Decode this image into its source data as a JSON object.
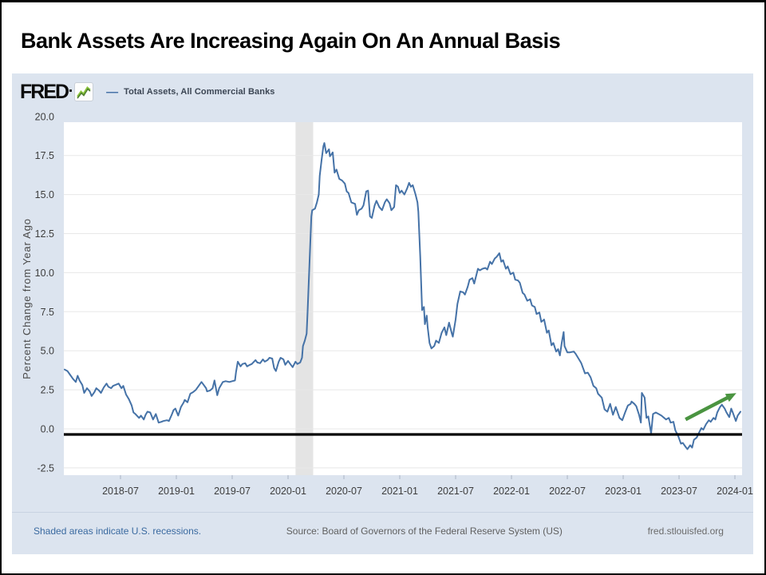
{
  "slide": {
    "title": "Bank Assets Are Increasing Again On An Annual Basis"
  },
  "fred_header": {
    "logo_text": "FRED",
    "logo_icon": "green-sparkline-icon",
    "legend_dash": "—",
    "legend_label": "Total Assets, All Commercial Banks"
  },
  "footer": {
    "left_note": "Shaded areas indicate U.S. recessions.",
    "source": "Source: Board of Governors of the Federal Reserve System (US)",
    "site": "fred.stlouisfed.org"
  },
  "chart_data": {
    "type": "line",
    "title": "Total Assets, All Commercial Banks",
    "ylabel": "Percent Change from Year Ago",
    "x_unit": "months_since_2018-01",
    "xlim": [
      -0.1,
      72.8
    ],
    "ylim": [
      -3.0,
      19.6
    ],
    "grid": "horizontal-only",
    "legend_position": "top-header",
    "y_ticks": [
      20.0,
      17.5,
      15.0,
      12.5,
      10.0,
      7.5,
      5.0,
      2.5,
      0.0,
      -2.5
    ],
    "y_tick_labels": [
      "20.0",
      "17.5",
      "15.0",
      "12.5",
      "10.0",
      "7.5",
      "5.0",
      "2.5",
      "0.0",
      "-2.5"
    ],
    "x_tick_months": [
      6,
      12,
      18,
      24,
      30,
      36,
      42,
      48,
      54,
      60,
      66,
      72
    ],
    "x_tick_labels": [
      "2018-07",
      "2019-01",
      "2019-07",
      "2020-01",
      "2020-07",
      "2021-01",
      "2021-07",
      "2022-01",
      "2022-07",
      "2023-01",
      "2023-07",
      "2024-01"
    ],
    "zero_line_value": 0.0,
    "recession_band_months": [
      24.8,
      26.7
    ],
    "recession_band_note": "U.S. recession shading, 2020-02 to 2020-04",
    "colors": {
      "line": "#4572a7",
      "gridline": "#e8e8e8",
      "recession_band": "#e4e4e4",
      "plot_background": "#ffffff",
      "widget_background": "#dce4ef",
      "tick_text": "#3d3d3d",
      "axis_title_text": "#4a4a4a",
      "zero_line": "#000000",
      "arrow": "#4a9440"
    },
    "annotation_arrow": {
      "type": "arrow",
      "from_month": 66.7,
      "from_value": 0.6,
      "to_month": 71.7,
      "to_value": 2.15,
      "color": "#4a9440"
    },
    "series": [
      {
        "name": "Total Assets, All Commercial Banks",
        "points": [
          [
            0,
            3.8
          ],
          [
            0.3,
            3.7
          ],
          [
            0.6,
            3.45
          ],
          [
            0.9,
            3.2
          ],
          [
            1.2,
            3.0
          ],
          [
            1.4,
            3.4
          ],
          [
            1.6,
            3.1
          ],
          [
            1.9,
            2.8
          ],
          [
            2.1,
            2.3
          ],
          [
            2.4,
            2.6
          ],
          [
            2.7,
            2.4
          ],
          [
            2.9,
            2.1
          ],
          [
            3.2,
            2.35
          ],
          [
            3.4,
            2.6
          ],
          [
            3.7,
            2.45
          ],
          [
            3.9,
            2.3
          ],
          [
            4.2,
            2.65
          ],
          [
            4.5,
            2.9
          ],
          [
            4.7,
            2.7
          ],
          [
            5.0,
            2.6
          ],
          [
            5.2,
            2.75
          ],
          [
            5.6,
            2.85
          ],
          [
            5.8,
            2.9
          ],
          [
            6.1,
            2.6
          ],
          [
            6.3,
            2.75
          ],
          [
            6.6,
            2.2
          ],
          [
            6.9,
            1.9
          ],
          [
            7.2,
            1.5
          ],
          [
            7.4,
            1.05
          ],
          [
            7.6,
            0.95
          ],
          [
            8.0,
            0.7
          ],
          [
            8.2,
            0.85
          ],
          [
            8.5,
            0.6
          ],
          [
            8.7,
            0.9
          ],
          [
            8.9,
            1.1
          ],
          [
            9.2,
            1.05
          ],
          [
            9.5,
            0.6
          ],
          [
            9.8,
            0.95
          ],
          [
            10.1,
            0.4
          ],
          [
            10.4,
            0.45
          ],
          [
            10.6,
            0.5
          ],
          [
            11.0,
            0.55
          ],
          [
            11.2,
            0.5
          ],
          [
            11.5,
            0.9
          ],
          [
            11.7,
            1.2
          ],
          [
            11.9,
            1.3
          ],
          [
            12.2,
            0.85
          ],
          [
            12.5,
            1.4
          ],
          [
            12.8,
            1.7
          ],
          [
            12.9,
            1.85
          ],
          [
            13.2,
            1.7
          ],
          [
            13.5,
            2.25
          ],
          [
            13.8,
            2.35
          ],
          [
            14.1,
            2.5
          ],
          [
            14.4,
            2.75
          ],
          [
            14.7,
            3.0
          ],
          [
            14.9,
            2.85
          ],
          [
            15.2,
            2.6
          ],
          [
            15.3,
            2.4
          ],
          [
            15.6,
            2.45
          ],
          [
            15.9,
            2.6
          ],
          [
            16.1,
            3.1
          ],
          [
            16.4,
            2.15
          ],
          [
            16.6,
            2.6
          ],
          [
            17.0,
            3.0
          ],
          [
            17.3,
            3.05
          ],
          [
            17.7,
            3.0
          ],
          [
            18.0,
            3.05
          ],
          [
            18.3,
            3.1
          ],
          [
            18.4,
            3.6
          ],
          [
            18.6,
            4.3
          ],
          [
            18.9,
            4.0
          ],
          [
            19.1,
            4.15
          ],
          [
            19.4,
            4.2
          ],
          [
            19.6,
            4.0
          ],
          [
            19.9,
            4.1
          ],
          [
            20.1,
            4.15
          ],
          [
            20.5,
            4.4
          ],
          [
            20.7,
            4.25
          ],
          [
            21.0,
            4.2
          ],
          [
            21.3,
            4.45
          ],
          [
            21.5,
            4.3
          ],
          [
            21.8,
            4.4
          ],
          [
            22.0,
            4.55
          ],
          [
            22.3,
            4.5
          ],
          [
            22.5,
            3.9
          ],
          [
            22.7,
            3.7
          ],
          [
            23.0,
            4.3
          ],
          [
            23.2,
            4.55
          ],
          [
            23.5,
            4.45
          ],
          [
            23.7,
            4.1
          ],
          [
            24.0,
            4.35
          ],
          [
            24.3,
            4.1
          ],
          [
            24.5,
            3.95
          ],
          [
            24.8,
            4.3
          ],
          [
            25.0,
            4.15
          ],
          [
            25.3,
            4.25
          ],
          [
            25.5,
            4.55
          ],
          [
            25.6,
            5.3
          ],
          [
            25.8,
            5.65
          ],
          [
            26.0,
            6.1
          ],
          [
            26.1,
            7.5
          ],
          [
            26.3,
            10.5
          ],
          [
            26.5,
            13.6
          ],
          [
            26.6,
            14.0
          ],
          [
            26.9,
            14.1
          ],
          [
            27.1,
            14.5
          ],
          [
            27.3,
            15.0
          ],
          [
            27.4,
            16.2
          ],
          [
            27.6,
            17.2
          ],
          [
            27.8,
            18.1
          ],
          [
            27.9,
            18.3
          ],
          [
            28.1,
            17.65
          ],
          [
            28.4,
            17.9
          ],
          [
            28.5,
            17.45
          ],
          [
            28.8,
            17.7
          ],
          [
            29.0,
            16.4
          ],
          [
            29.2,
            16.6
          ],
          [
            29.5,
            16.0
          ],
          [
            29.8,
            15.9
          ],
          [
            30.1,
            15.7
          ],
          [
            30.3,
            15.2
          ],
          [
            30.5,
            15.1
          ],
          [
            30.8,
            14.5
          ],
          [
            31.2,
            14.4
          ],
          [
            31.4,
            13.7
          ],
          [
            31.6,
            14.0
          ],
          [
            31.9,
            14.1
          ],
          [
            32.1,
            14.3
          ],
          [
            32.4,
            15.2
          ],
          [
            32.6,
            15.25
          ],
          [
            32.8,
            13.6
          ],
          [
            33.0,
            13.5
          ],
          [
            33.3,
            14.3
          ],
          [
            33.5,
            14.6
          ],
          [
            33.8,
            14.2
          ],
          [
            34.1,
            14.0
          ],
          [
            34.4,
            14.5
          ],
          [
            34.6,
            14.7
          ],
          [
            34.9,
            14.45
          ],
          [
            35.1,
            14.0
          ],
          [
            35.4,
            14.2
          ],
          [
            35.6,
            15.6
          ],
          [
            35.8,
            15.5
          ],
          [
            36.0,
            15.1
          ],
          [
            36.2,
            15.25
          ],
          [
            36.5,
            15.0
          ],
          [
            36.8,
            15.4
          ],
          [
            37.0,
            15.75
          ],
          [
            37.2,
            15.5
          ],
          [
            37.4,
            15.6
          ],
          [
            37.7,
            15.0
          ],
          [
            37.9,
            14.5
          ],
          [
            38.0,
            13.9
          ],
          [
            38.2,
            11.0
          ],
          [
            38.4,
            7.6
          ],
          [
            38.6,
            7.8
          ],
          [
            38.7,
            6.7
          ],
          [
            38.9,
            7.25
          ],
          [
            39.0,
            6.5
          ],
          [
            39.2,
            5.5
          ],
          [
            39.4,
            5.15
          ],
          [
            39.7,
            5.3
          ],
          [
            39.9,
            5.65
          ],
          [
            40.2,
            5.5
          ],
          [
            40.5,
            6.15
          ],
          [
            40.8,
            6.5
          ],
          [
            41.0,
            6.0
          ],
          [
            41.3,
            6.8
          ],
          [
            41.6,
            6.1
          ],
          [
            41.7,
            5.9
          ],
          [
            42.0,
            7.0
          ],
          [
            42.2,
            8.0
          ],
          [
            42.5,
            8.8
          ],
          [
            42.8,
            8.75
          ],
          [
            43.0,
            8.6
          ],
          [
            43.3,
            9.1
          ],
          [
            43.5,
            9.55
          ],
          [
            43.8,
            9.65
          ],
          [
            44.0,
            9.3
          ],
          [
            44.4,
            10.25
          ],
          [
            44.6,
            10.15
          ],
          [
            44.9,
            10.25
          ],
          [
            45.2,
            10.3
          ],
          [
            45.4,
            10.2
          ],
          [
            45.7,
            10.7
          ],
          [
            45.9,
            10.55
          ],
          [
            46.2,
            10.9
          ],
          [
            46.4,
            11.0
          ],
          [
            46.7,
            11.25
          ],
          [
            46.9,
            10.7
          ],
          [
            47.1,
            10.8
          ],
          [
            47.4,
            10.25
          ],
          [
            47.6,
            10.4
          ],
          [
            47.9,
            9.9
          ],
          [
            48.2,
            10.0
          ],
          [
            48.4,
            9.55
          ],
          [
            48.7,
            9.5
          ],
          [
            48.9,
            9.35
          ],
          [
            49.2,
            8.7
          ],
          [
            49.4,
            8.6
          ],
          [
            49.7,
            8.2
          ],
          [
            50.0,
            8.3
          ],
          [
            50.2,
            7.9
          ],
          [
            50.5,
            7.8
          ],
          [
            50.7,
            7.35
          ],
          [
            51.0,
            7.45
          ],
          [
            51.2,
            6.85
          ],
          [
            51.5,
            7.0
          ],
          [
            51.8,
            6.15
          ],
          [
            52.0,
            6.3
          ],
          [
            52.3,
            5.35
          ],
          [
            52.5,
            5.5
          ],
          [
            52.8,
            4.95
          ],
          [
            53.0,
            5.1
          ],
          [
            53.2,
            4.7
          ],
          [
            53.4,
            5.5
          ],
          [
            53.6,
            6.2
          ],
          [
            53.7,
            5.3
          ],
          [
            54.0,
            4.9
          ],
          [
            54.3,
            4.9
          ],
          [
            54.7,
            4.95
          ],
          [
            54.9,
            4.8
          ],
          [
            55.3,
            4.4
          ],
          [
            55.5,
            4.2
          ],
          [
            55.9,
            3.55
          ],
          [
            56.2,
            3.6
          ],
          [
            56.5,
            3.3
          ],
          [
            56.8,
            2.75
          ],
          [
            57.1,
            2.6
          ],
          [
            57.3,
            2.25
          ],
          [
            57.7,
            2.0
          ],
          [
            58.0,
            1.25
          ],
          [
            58.3,
            1.1
          ],
          [
            58.6,
            1.6
          ],
          [
            58.9,
            0.9
          ],
          [
            59.2,
            1.4
          ],
          [
            59.6,
            0.7
          ],
          [
            59.9,
            0.55
          ],
          [
            60.2,
            1.05
          ],
          [
            60.5,
            1.5
          ],
          [
            60.8,
            1.6
          ],
          [
            60.9,
            1.75
          ],
          [
            61.2,
            1.6
          ],
          [
            61.4,
            1.45
          ],
          [
            61.7,
            0.9
          ],
          [
            61.9,
            0.4
          ],
          [
            62.0,
            2.3
          ],
          [
            62.3,
            2.0
          ],
          [
            62.5,
            0.7
          ],
          [
            62.7,
            0.8
          ],
          [
            63.0,
            -0.3
          ],
          [
            63.2,
            0.95
          ],
          [
            63.5,
            1.05
          ],
          [
            63.8,
            0.95
          ],
          [
            64.1,
            0.85
          ],
          [
            64.4,
            0.7
          ],
          [
            64.6,
            0.6
          ],
          [
            64.9,
            0.7
          ],
          [
            65.1,
            0.4
          ],
          [
            65.4,
            0.45
          ],
          [
            65.6,
            -0.1
          ],
          [
            65.9,
            -0.45
          ],
          [
            66.2,
            -0.95
          ],
          [
            66.4,
            -0.9
          ],
          [
            66.7,
            -1.15
          ],
          [
            66.9,
            -1.3
          ],
          [
            67.2,
            -1.05
          ],
          [
            67.4,
            -1.2
          ],
          [
            67.6,
            -0.7
          ],
          [
            67.9,
            -0.55
          ],
          [
            68.1,
            -0.3
          ],
          [
            68.4,
            0.05
          ],
          [
            68.6,
            -0.05
          ],
          [
            68.9,
            0.3
          ],
          [
            69.2,
            0.55
          ],
          [
            69.4,
            0.45
          ],
          [
            69.7,
            0.7
          ],
          [
            69.9,
            0.6
          ],
          [
            70.1,
            1.05
          ],
          [
            70.4,
            1.4
          ],
          [
            70.6,
            1.55
          ],
          [
            70.9,
            1.3
          ],
          [
            71.1,
            1.05
          ],
          [
            71.4,
            0.75
          ],
          [
            71.6,
            1.3
          ],
          [
            71.8,
            1.0
          ],
          [
            72.1,
            0.5
          ],
          [
            72.3,
            0.85
          ],
          [
            72.6,
            1.1
          ]
        ]
      }
    ]
  }
}
